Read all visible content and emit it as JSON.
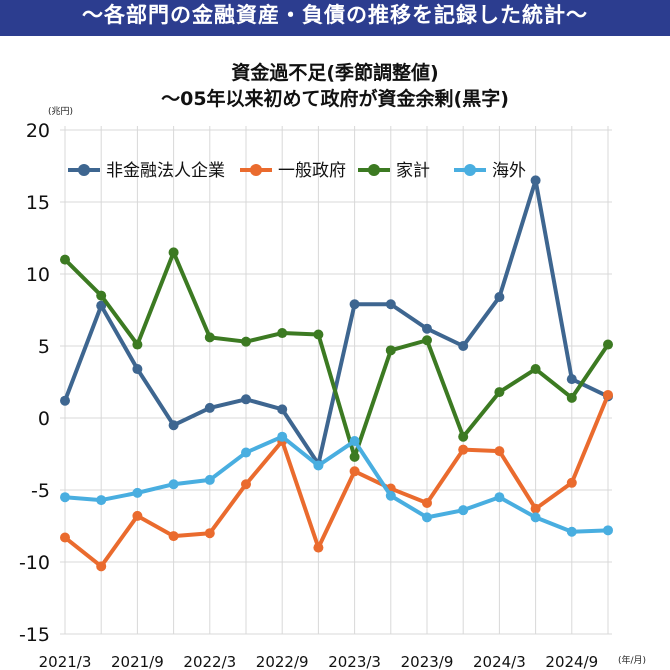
{
  "banner": {
    "text": "〜各部門の金融資産・負債の推移を記録した統計〜"
  },
  "colors": {
    "banner_bg": "#2c3d8f",
    "corporate": "#3e6690",
    "government": "#ea6b2e",
    "household": "#3c7a22",
    "overseas": "#49aee0",
    "grid": "#d8d8d8"
  },
  "chart_data": {
    "type": "line",
    "title": "資金過不足(季節調整値)",
    "subtitle": "〜05年以来初めて政府が資金余剰(黒字)",
    "y_unit": "(兆円)",
    "x_unit": "(年/月)",
    "ylim": [
      -15,
      20
    ],
    "yticks": [
      20,
      15,
      10,
      5,
      0,
      -5,
      -10,
      -15
    ],
    "grid": true,
    "legend_position": "top-left",
    "x_tick_labels": [
      "2021/3",
      "2021/9",
      "2022/3",
      "2022/9",
      "2023/3",
      "2023/9",
      "2024/3",
      "2024/9"
    ],
    "x_tick_indices": [
      0,
      2,
      4,
      6,
      8,
      10,
      12,
      14
    ],
    "categories": [
      "2021/3",
      "2021/6",
      "2021/9",
      "2021/12",
      "2022/3",
      "2022/6",
      "2022/9",
      "2022/12",
      "2023/3",
      "2023/6",
      "2023/9",
      "2023/12",
      "2024/3",
      "2024/6",
      "2024/9",
      "2024/12"
    ],
    "series": [
      {
        "name": "非金融法人企業",
        "color_key": "corporate",
        "values": [
          1.2,
          7.8,
          3.4,
          -0.5,
          0.7,
          1.3,
          0.6,
          -3.2,
          7.9,
          7.9,
          6.2,
          5.0,
          8.4,
          16.5,
          2.7,
          1.5
        ]
      },
      {
        "name": "一般政府",
        "color_key": "government",
        "values": [
          -8.3,
          -10.3,
          -6.8,
          -8.2,
          -8.0,
          -4.6,
          -1.6,
          -9.0,
          -3.7,
          -4.9,
          -5.9,
          -2.2,
          -2.3,
          -6.3,
          -4.5,
          1.6
        ]
      },
      {
        "name": "家計",
        "color_key": "household",
        "values": [
          11.0,
          8.5,
          5.1,
          11.5,
          5.6,
          5.3,
          5.9,
          5.8,
          -2.7,
          4.7,
          5.4,
          -1.3,
          1.8,
          3.4,
          1.4,
          5.1
        ]
      },
      {
        "name": "海外",
        "color_key": "overseas",
        "values": [
          -5.5,
          -5.7,
          -5.2,
          -4.6,
          -4.3,
          -2.4,
          -1.3,
          -3.3,
          -1.6,
          -5.4,
          -6.9,
          -6.4,
          -5.5,
          -6.9,
          -7.9,
          -7.8
        ]
      }
    ]
  }
}
